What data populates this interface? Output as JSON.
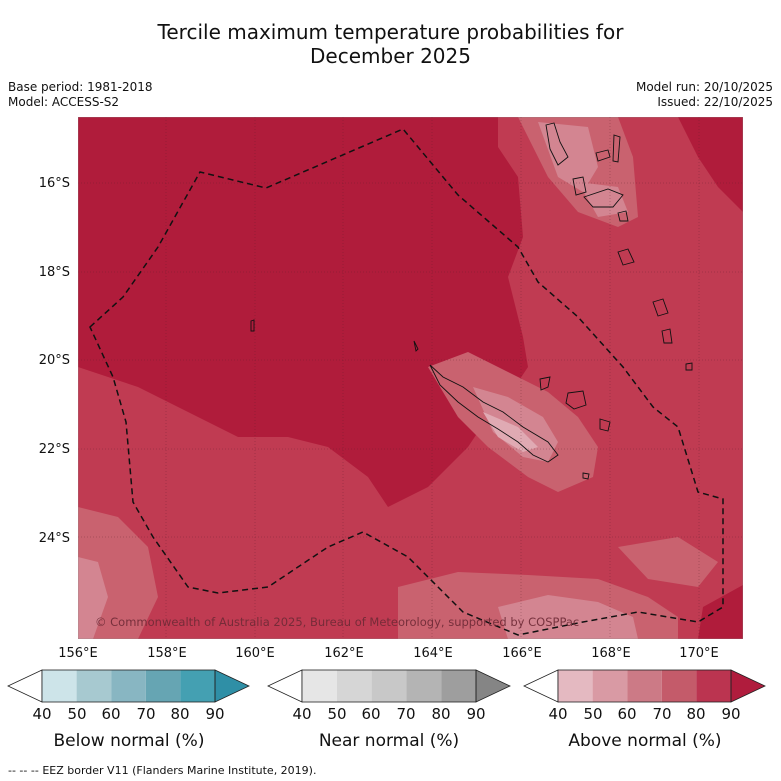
{
  "title": {
    "line1": "Tercile maximum temperature probabilities for",
    "line2": "December 2025"
  },
  "meta": {
    "base_period": "Base period: 1981-2018",
    "model": "Model: ACCESS-S2",
    "model_run": "Model run: 20/10/2025",
    "issued": "Issued: 22/10/2025"
  },
  "map": {
    "copyright": "© Commonwealth of Australia 2025, Bureau of Meteorology, supported by COSPPac",
    "lat_labels": [
      "16°S",
      "18°S",
      "20°S",
      "22°S",
      "24°S"
    ],
    "lon_labels": [
      "156°E",
      "158°E",
      "160°E",
      "162°E",
      "164°E",
      "166°E",
      "168°E",
      "170°E"
    ]
  },
  "colorbars": [
    {
      "name": "below",
      "title": "Below normal (%)",
      "ticks": [
        "40",
        "50",
        "60",
        "70",
        "80",
        "90"
      ],
      "colors": [
        "#cde4e9",
        "#a7c9d0",
        "#88b6c2",
        "#66a5b3",
        "#44a0b2",
        "#2f8fa6"
      ]
    },
    {
      "name": "near",
      "title": "Near normal (%)",
      "ticks": [
        "40",
        "50",
        "60",
        "70",
        "80",
        "90"
      ],
      "colors": [
        "#e6e6e6",
        "#d6d6d6",
        "#c8c8c8",
        "#b4b4b4",
        "#9e9e9e",
        "#858585"
      ]
    },
    {
      "name": "above",
      "title": "Above normal (%)",
      "ticks": [
        "40",
        "50",
        "60",
        "70",
        "80",
        "90"
      ],
      "colors": [
        "#e4b9c1",
        "#d99aa4",
        "#cc7a86",
        "#c45b6a",
        "#bb3450",
        "#b01c3d"
      ]
    }
  ],
  "legend": {
    "eez_marker": "-- -- --",
    "eez_text": "EEZ border V11 (Flanders Marine Institute, 2019)."
  }
}
